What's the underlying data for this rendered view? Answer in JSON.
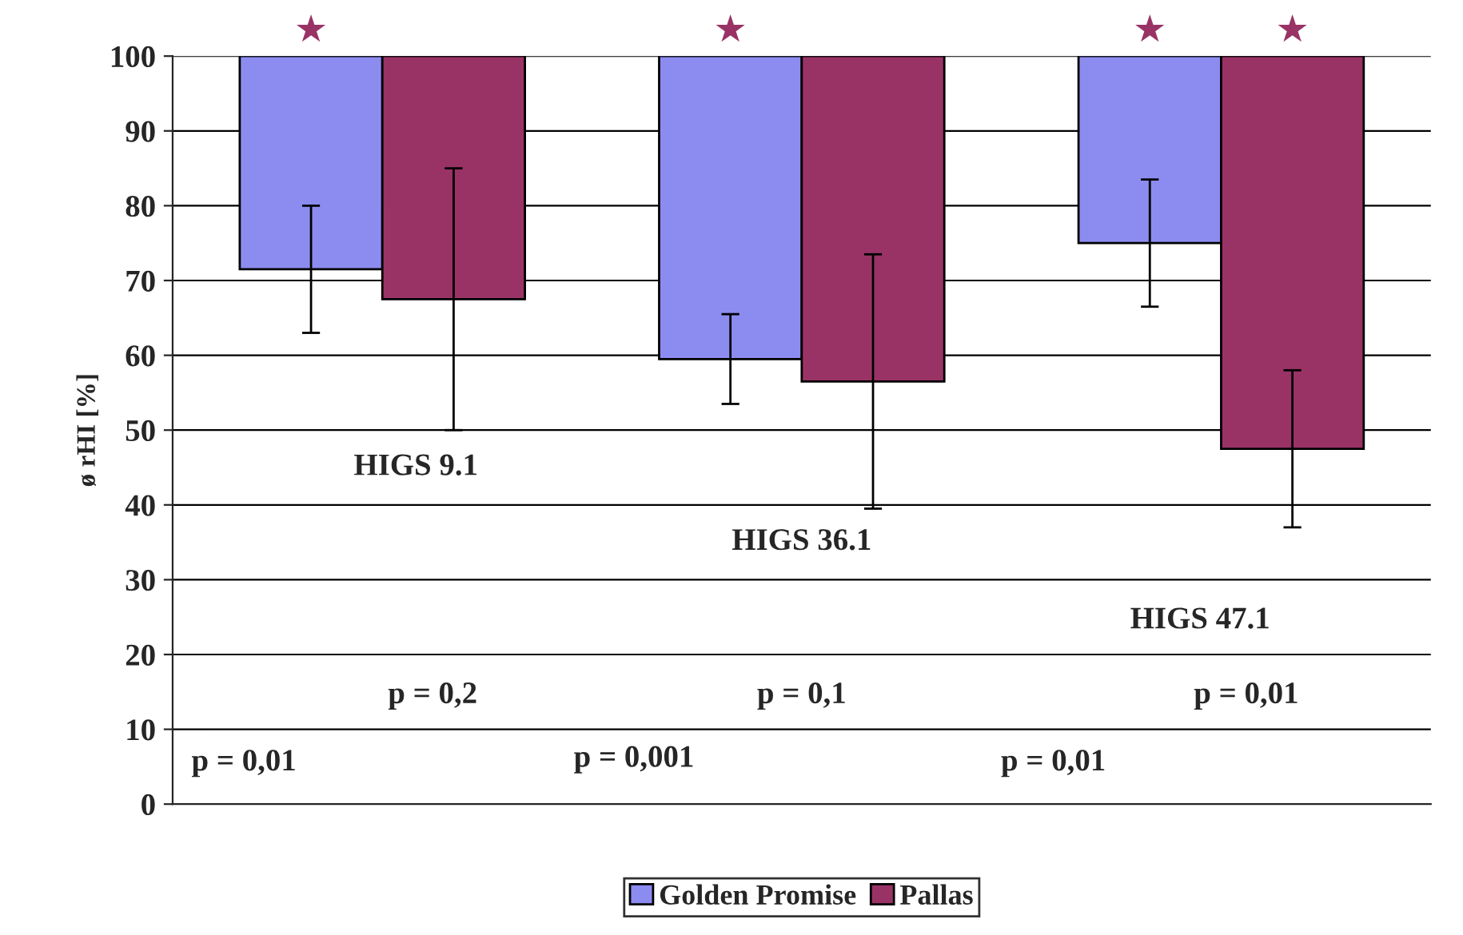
{
  "chart_data": {
    "type": "bar",
    "categories": [
      null,
      null,
      null
    ],
    "ylabel": "ø rHI [%]",
    "series": [
      {
        "name": "Golden Promise",
        "color": "#8c8cf0",
        "base": [
          100,
          100,
          100
        ],
        "values": [
          -28.5,
          -40.5,
          -25
        ],
        "errors": [
          8.5,
          6,
          8.5
        ],
        "value_labels": [
          "★",
          "★",
          "★"
        ]
      },
      {
        "name": "Pallas",
        "color": "#993366",
        "base": [
          100,
          100,
          100
        ],
        "values": [
          -32.5,
          -43.5,
          -52.5
        ],
        "errors": [
          17.5,
          17,
          10.5
        ],
        "value_labels": [
          null,
          null,
          "★"
        ]
      }
    ],
    "annotations": [
      "HIGS 9.1",
      "HIGS 36.1",
      "HIGS 47.1",
      "p = 0,2",
      "p = 0,1",
      "p = 0,01",
      "p = 0,01",
      "p = 0,001",
      "p = 0,01"
    ],
    "ylim": [
      0,
      100
    ],
    "yticks": [
      0,
      10,
      20,
      30,
      40,
      50,
      60,
      70,
      80,
      90,
      100
    ],
    "grid": "y",
    "legend": "bottom"
  }
}
